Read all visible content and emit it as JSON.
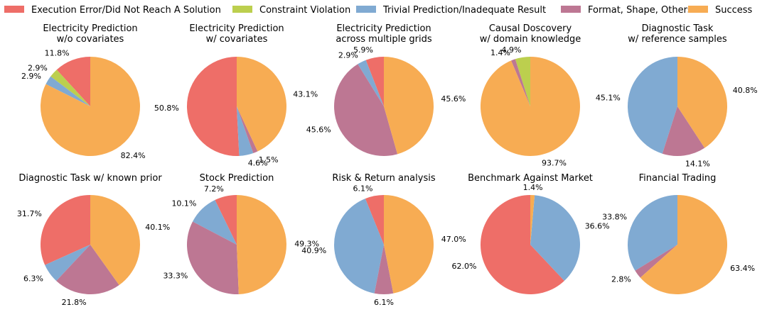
{
  "legend": [
    {
      "key": "error",
      "label": "Execution Error/Did Not Reach A Solution",
      "color": "#ee6e68"
    },
    {
      "key": "constraint",
      "label": "Constraint Violation",
      "color": "#bccf4e"
    },
    {
      "key": "trivial",
      "label": "Trivial Prediction/Inadequate Result",
      "color": "#80aad2"
    },
    {
      "key": "format",
      "label": "Format, Shape, Others",
      "color": "#bd7793"
    },
    {
      "key": "success",
      "label": "Success",
      "color": "#f7ac53"
    }
  ],
  "chart_data": [
    {
      "type": "pie",
      "title_lines": [
        "Electricity Prediction",
        "w/o covariates"
      ],
      "slices": [
        {
          "category": "error",
          "value": 11.8,
          "label": "11.8%"
        },
        {
          "category": "constraint",
          "value": 2.9,
          "label": "2.9%"
        },
        {
          "category": "trivial",
          "value": 2.9,
          "label": "2.9%"
        },
        {
          "category": "format",
          "value": 0,
          "label": ""
        },
        {
          "category": "success",
          "value": 82.4,
          "label": "82.4%"
        }
      ]
    },
    {
      "type": "pie",
      "title_lines": [
        "Electricity Prediction",
        "w/ covariates"
      ],
      "slices": [
        {
          "category": "error",
          "value": 50.8,
          "label": "50.8%"
        },
        {
          "category": "constraint",
          "value": 0,
          "label": ""
        },
        {
          "category": "trivial",
          "value": 4.6,
          "label": "4.6%"
        },
        {
          "category": "format",
          "value": 1.5,
          "label": "1.5%"
        },
        {
          "category": "success",
          "value": 43.1,
          "label": "43.1%"
        }
      ]
    },
    {
      "type": "pie",
      "title_lines": [
        "Electricity Prediction",
        "across multiple grids"
      ],
      "slices": [
        {
          "category": "error",
          "value": 5.9,
          "label": "5.9%"
        },
        {
          "category": "constraint",
          "value": 0,
          "label": ""
        },
        {
          "category": "trivial",
          "value": 2.9,
          "label": "2.9%"
        },
        {
          "category": "format",
          "value": 45.6,
          "label": "45.6%"
        },
        {
          "category": "success",
          "value": 45.6,
          "label": "45.6%"
        }
      ]
    },
    {
      "type": "pie",
      "title_lines": [
        "Causal Doscovery",
        "w/ domain knowledge"
      ],
      "slices": [
        {
          "category": "error",
          "value": 0,
          "label": ""
        },
        {
          "category": "constraint",
          "value": 4.9,
          "label": "4.9%"
        },
        {
          "category": "trivial",
          "value": 0,
          "label": ""
        },
        {
          "category": "format",
          "value": 1.4,
          "label": "1.4%"
        },
        {
          "category": "success",
          "value": 93.7,
          "label": "93.7%"
        }
      ]
    },
    {
      "type": "pie",
      "title_lines": [
        "Diagnostic Task",
        "w/ reference samples"
      ],
      "slices": [
        {
          "category": "error",
          "value": 0,
          "label": ""
        },
        {
          "category": "constraint",
          "value": 0,
          "label": ""
        },
        {
          "category": "trivial",
          "value": 45.1,
          "label": "45.1%"
        },
        {
          "category": "format",
          "value": 14.1,
          "label": "14.1%"
        },
        {
          "category": "success",
          "value": 40.8,
          "label": "40.8%"
        }
      ]
    },
    {
      "type": "pie",
      "title_lines": [
        "Diagnostic Task w/ known prior"
      ],
      "slices": [
        {
          "category": "error",
          "value": 31.7,
          "label": "31.7%"
        },
        {
          "category": "constraint",
          "value": 0,
          "label": ""
        },
        {
          "category": "trivial",
          "value": 6.3,
          "label": "6.3%"
        },
        {
          "category": "format",
          "value": 21.8,
          "label": "21.8%"
        },
        {
          "category": "success",
          "value": 40.1,
          "label": "40.1%"
        }
      ]
    },
    {
      "type": "pie",
      "title_lines": [
        "Stock Prediction"
      ],
      "slices": [
        {
          "category": "error",
          "value": 7.2,
          "label": "7.2%"
        },
        {
          "category": "constraint",
          "value": 0,
          "label": ""
        },
        {
          "category": "trivial",
          "value": 10.1,
          "label": "10.1%"
        },
        {
          "category": "format",
          "value": 33.3,
          "label": "33.3%"
        },
        {
          "category": "success",
          "value": 49.3,
          "label": "49.3%"
        }
      ]
    },
    {
      "type": "pie",
      "title_lines": [
        "Risk & Return analysis"
      ],
      "slices": [
        {
          "category": "error",
          "value": 6.1,
          "label": "6.1%"
        },
        {
          "category": "constraint",
          "value": 0,
          "label": ""
        },
        {
          "category": "trivial",
          "value": 40.9,
          "label": "40.9%"
        },
        {
          "category": "format",
          "value": 6.1,
          "label": "6.1%"
        },
        {
          "category": "success",
          "value": 47.0,
          "label": "47.0%"
        }
      ]
    },
    {
      "type": "pie",
      "title_lines": [
        "Benchmark Against Market"
      ],
      "slices": [
        {
          "category": "error",
          "value": 62.0,
          "label": "62.0%"
        },
        {
          "category": "constraint",
          "value": 0,
          "label": ""
        },
        {
          "category": "trivial",
          "value": 36.6,
          "label": "36.6%"
        },
        {
          "category": "format",
          "value": 0,
          "label": ""
        },
        {
          "category": "success",
          "value": 1.4,
          "label": "1.4%"
        }
      ]
    },
    {
      "type": "pie",
      "title_lines": [
        "Financial Trading"
      ],
      "slices": [
        {
          "category": "error",
          "value": 0,
          "label": ""
        },
        {
          "category": "constraint",
          "value": 0,
          "label": ""
        },
        {
          "category": "trivial",
          "value": 33.8,
          "label": "33.8%"
        },
        {
          "category": "format",
          "value": 2.8,
          "label": "2.8%"
        },
        {
          "category": "success",
          "value": 63.4,
          "label": "63.4%"
        }
      ]
    }
  ]
}
